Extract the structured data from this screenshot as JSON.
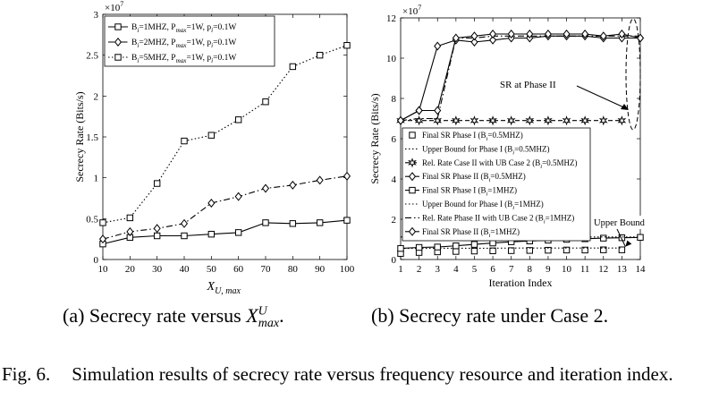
{
  "figure_caption": {
    "label": "Fig. 6.",
    "text": "Simulation results of secrecy rate versus frequency resource and iteration index."
  },
  "captions": {
    "a_prefix": "(a) Secrecy rate versus",
    "a_math": "X",
    "a_sup": "U",
    "a_sub": "max",
    "a_suffix": ".",
    "b": "(b) Secrecy rate under Case 2."
  },
  "chart_data": [
    {
      "type": "line",
      "xlabel": "X",
      "xlabel_sub": "U, max",
      "ylabel": "Secrecy Rate (Bits/s)",
      "exponent_label": "×10",
      "exponent_sup": "7",
      "x": [
        10,
        20,
        30,
        40,
        50,
        60,
        70,
        80,
        90,
        100
      ],
      "xlim": [
        10,
        100
      ],
      "ylim": [
        0,
        3
      ],
      "xticks": [
        "10",
        "20",
        "30",
        "40",
        "50",
        "60",
        "70",
        "80",
        "90",
        "100"
      ],
      "yticks": [
        "0",
        "0.5",
        "1",
        "1.5",
        "2",
        "2.5",
        "3"
      ],
      "legend_position": "top-left",
      "series": [
        {
          "name": "B_i=1MHZ, P_max=1W, p_i=0.1W",
          "legend_parts": [
            "B",
            "i",
            "=1MHZ, P",
            "max",
            "=1W, p",
            "i",
            "=0.1W"
          ],
          "marker": "square",
          "style": "solid",
          "values": [
            0.19,
            0.27,
            0.29,
            0.29,
            0.31,
            0.33,
            0.45,
            0.44,
            0.45,
            0.48
          ]
        },
        {
          "name": "B_i=2MHZ, P_max=1W, p_i=0.1W",
          "legend_parts": [
            "B",
            "i",
            "=2MHZ, P",
            "max",
            "=1W, p",
            "i",
            "=0.1W"
          ],
          "marker": "diamond",
          "style": "dashdot",
          "values": [
            0.25,
            0.34,
            0.38,
            0.44,
            0.69,
            0.77,
            0.87,
            0.91,
            0.97,
            1.02
          ]
        },
        {
          "name": "B_i=5MHZ, P_max=1W, p_i=0.1W",
          "legend_parts": [
            "B",
            "i",
            "=5MHZ, P",
            "max",
            "=1W, p",
            "i",
            "=0.1W"
          ],
          "marker": "square",
          "style": "dotted",
          "values": [
            0.45,
            0.51,
            0.93,
            1.45,
            1.52,
            1.71,
            1.93,
            2.36,
            2.5,
            2.62
          ]
        }
      ]
    },
    {
      "type": "line",
      "xlabel": "Iteration Index",
      "ylabel": "Secrecy Rate (Bits/s)",
      "exponent_label": "×10",
      "exponent_sup": "7",
      "xlim": [
        1,
        14
      ],
      "ylim": [
        0,
        12
      ],
      "xticks": [
        "1",
        "2",
        "3",
        "4",
        "5",
        "6",
        "7",
        "8",
        "9",
        "10",
        "11",
        "12",
        "13",
        "14"
      ],
      "yticks": [
        "0",
        "2",
        "4",
        "6",
        "8",
        "10",
        "12"
      ],
      "legend_position": "center-left",
      "series": [
        {
          "name": "Final SR Phase I (B_i=0.5MHZ)",
          "legend_parts": [
            "Final SR Phase I (B",
            "i",
            "=0.5MHZ)"
          ],
          "marker": "square-open",
          "style": "none",
          "x": [
            1,
            2,
            3,
            4,
            5,
            6,
            7,
            8,
            9,
            10,
            11,
            12,
            13
          ],
          "values": [
            0.3,
            0.35,
            0.38,
            0.4,
            0.42,
            0.43,
            0.44,
            0.45,
            0.46,
            0.47,
            0.47,
            0.48,
            0.48
          ]
        },
        {
          "name": "Upper Bound for Phase I (B_i=0.5MHZ)",
          "legend_parts": [
            "Upper Bound for Phase I (B",
            "i",
            "=0.5MHZ)"
          ],
          "marker": "none",
          "style": "dotted",
          "x": [
            1,
            2,
            3,
            4,
            5,
            6,
            7,
            8,
            9,
            10,
            11,
            12,
            13
          ],
          "values": [
            0.55,
            0.55,
            0.56,
            0.56,
            0.56,
            0.56,
            0.57,
            0.57,
            0.57,
            0.57,
            0.57,
            0.57,
            0.57
          ]
        },
        {
          "name": "Rel. Rate Case II with UB Case 2 (B_i=0.5MHZ)",
          "legend_parts": [
            "Rel. Rate Case II with UB Case 2 (B",
            "i",
            "=0.5MHZ)"
          ],
          "marker": "star",
          "style": "dashed",
          "x": [
            1,
            2,
            3,
            4,
            5,
            6,
            7,
            8,
            9,
            10,
            11,
            12,
            13
          ],
          "values": [
            6.9,
            6.9,
            6.9,
            6.9,
            6.9,
            6.9,
            6.9,
            6.9,
            6.9,
            6.9,
            6.9,
            6.9,
            6.9
          ]
        },
        {
          "name": "Final SR Phase II (B_i=0.5MHZ)",
          "legend_parts": [
            "Final SR Phase II (B",
            "i",
            "=0.5MHZ)"
          ],
          "marker": "diamond",
          "style": "solid",
          "x": [
            1,
            2,
            3,
            4,
            5,
            6,
            7,
            8,
            9,
            10,
            11,
            12,
            13,
            14
          ],
          "values": [
            6.9,
            7.4,
            10.6,
            10.9,
            10.8,
            10.9,
            11.0,
            11.0,
            11.1,
            11.1,
            11.1,
            11.0,
            11.0,
            11.0
          ]
        },
        {
          "name": "Final SR Phase I (B_i=1MHZ)",
          "legend_parts": [
            "Final SR Phase I (B",
            "i",
            "=1MHZ)"
          ],
          "marker": "square",
          "style": "solid",
          "x": [
            1,
            2,
            3,
            4,
            5,
            6,
            7,
            8,
            9,
            10,
            11,
            12,
            13,
            14
          ],
          "values": [
            0.55,
            0.6,
            0.62,
            0.68,
            0.75,
            0.82,
            0.88,
            0.92,
            0.96,
            1.0,
            1.03,
            1.06,
            1.08,
            1.1
          ]
        },
        {
          "name": "Upper Bound for Phase I (B_i=1MHZ)",
          "legend_parts": [
            "Upper Bound for Phase I (B",
            "i",
            "=1MHZ)"
          ],
          "marker": "none",
          "style": "dotted",
          "x": [
            1,
            2,
            3,
            4,
            5,
            6,
            7,
            8,
            9,
            10,
            11,
            12,
            13,
            14
          ],
          "values": [
            1.12,
            1.12,
            1.12,
            1.12,
            1.12,
            1.12,
            1.12,
            1.12,
            1.12,
            1.12,
            1.12,
            1.12,
            1.12,
            1.12
          ]
        },
        {
          "name": "Rel. Rate Phase II with UB Case 2 (B_i=1MHZ)",
          "legend_parts": [
            "Rel. Rate Phase II with UB Case 2 (B",
            "i",
            "=1MHZ)"
          ],
          "marker": "none",
          "style": "dashdot",
          "x": [
            1,
            2,
            3,
            4,
            5,
            6,
            7,
            8,
            9,
            10,
            11,
            12,
            13,
            14
          ],
          "values": [
            6.9,
            7.0,
            7.0,
            11.0,
            11.0,
            11.1,
            11.1,
            11.1,
            11.1,
            11.1,
            11.1,
            11.1,
            11.1,
            11.1
          ]
        },
        {
          "name": "Final SR Phase II (B_i=1MHZ)",
          "legend_parts": [
            "Final SR Phase II (B",
            "i",
            "=1MHZ)"
          ],
          "marker": "diamond",
          "style": "solid",
          "x": [
            1,
            2,
            3,
            4,
            5,
            6,
            7,
            8,
            9,
            10,
            11,
            12,
            13,
            14
          ],
          "values": [
            6.9,
            7.4,
            7.4,
            11.0,
            11.1,
            11.2,
            11.2,
            11.2,
            11.2,
            11.2,
            11.2,
            11.1,
            11.2,
            11.0
          ]
        }
      ],
      "annotations": [
        {
          "text": "SR at Phase II",
          "target": "ellipse around x=14, y≈6–12"
        },
        {
          "text": "Upper Bound",
          "target": "arrow to x≈13, y≈0.55"
        }
      ]
    }
  ]
}
